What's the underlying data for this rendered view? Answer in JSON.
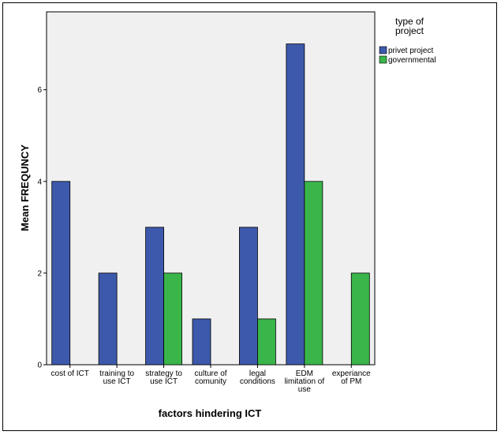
{
  "chart_data": {
    "type": "bar",
    "title": "",
    "xlabel": "factors hindering ICT",
    "ylabel": "Mean FREQUNCY",
    "ylim": [
      0,
      7.7
    ],
    "yticks": [
      0,
      2,
      4,
      6
    ],
    "grid": false,
    "legend_position": "right",
    "legend_title": [
      "type of",
      "project"
    ],
    "categories": [
      [
        "cost of ICT"
      ],
      [
        "training to",
        "use ICT"
      ],
      [
        "strategy to",
        "use ICT"
      ],
      [
        "culture of",
        "comunity"
      ],
      [
        "legal",
        "conditions"
      ],
      [
        "EDM",
        "limitation of",
        "use"
      ],
      [
        "experiance",
        "of PM"
      ]
    ],
    "series": [
      {
        "name": "privet project",
        "color": "#3d59ab",
        "values": [
          4,
          2,
          3,
          1,
          3,
          7,
          null
        ]
      },
      {
        "name": "governmental",
        "color": "#3ab54a",
        "values": [
          null,
          null,
          2,
          null,
          1,
          4,
          2
        ]
      }
    ]
  }
}
